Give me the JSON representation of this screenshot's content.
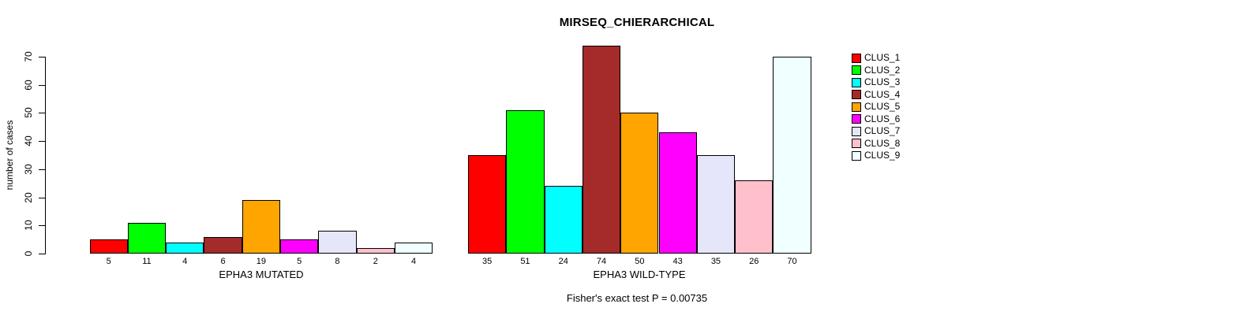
{
  "title": "MIRSEQ_CHIERARCHICAL",
  "chart_data": {
    "type": "bar",
    "title": "MIRSEQ_CHIERARCHICAL",
    "ylabel": "number of cases",
    "ylim": [
      0,
      70
    ],
    "yticks": [
      0,
      10,
      20,
      30,
      40,
      50,
      60,
      70
    ],
    "grid": false,
    "legend_position": "right",
    "groups": [
      {
        "label": "EPHA3 MUTATED",
        "categories": [
          "CLUS_1",
          "CLUS_2",
          "CLUS_3",
          "CLUS_4",
          "CLUS_5",
          "CLUS_6",
          "CLUS_7",
          "CLUS_8",
          "CLUS_9"
        ],
        "values": [
          5,
          11,
          4,
          6,
          19,
          5,
          8,
          2,
          4
        ]
      },
      {
        "label": "EPHA3 WILD-TYPE",
        "categories": [
          "CLUS_1",
          "CLUS_2",
          "CLUS_3",
          "CLUS_4",
          "CLUS_5",
          "CLUS_6",
          "CLUS_7",
          "CLUS_8",
          "CLUS_9"
        ],
        "values": [
          35,
          51,
          24,
          74,
          50,
          43,
          35,
          26,
          70
        ]
      }
    ],
    "legend": [
      {
        "label": "CLUS_1",
        "color": "#FF0000"
      },
      {
        "label": "CLUS_2",
        "color": "#00FF00"
      },
      {
        "label": "CLUS_3",
        "color": "#00FFFF"
      },
      {
        "label": "CLUS_4",
        "color": "#A52A2A"
      },
      {
        "label": "CLUS_5",
        "color": "#FFA500"
      },
      {
        "label": "CLUS_6",
        "color": "#FF00FF"
      },
      {
        "label": "CLUS_7",
        "color": "#E6E6FA"
      },
      {
        "label": "CLUS_8",
        "color": "#FFC0CB"
      },
      {
        "label": "CLUS_9",
        "color": "#F0FFFF"
      }
    ],
    "annotation": "Fisher's exact test P = 0.00735",
    "axis_color": "#000000",
    "background_color": "#FFFFFF"
  }
}
